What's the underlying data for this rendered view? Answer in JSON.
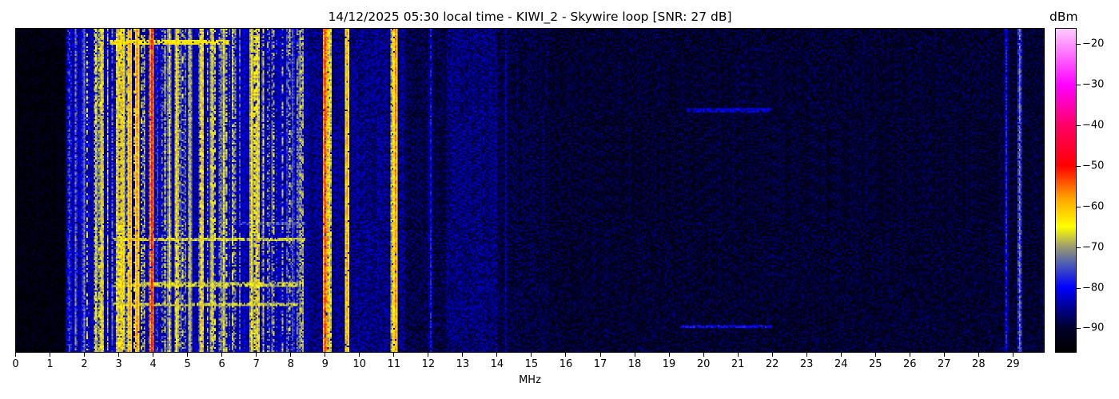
{
  "chart_data": {
    "type": "heatmap",
    "title": "14/12/2025 05:30 local time - KIWI_2 - Skywire loop [SNR: 27 dB]",
    "xlabel": "MHz",
    "ylabel": "",
    "xlim": [
      0,
      30
    ],
    "x_ticks": [
      "0",
      "1",
      "2",
      "3",
      "4",
      "5",
      "6",
      "7",
      "8",
      "9",
      "10",
      "11",
      "12",
      "13",
      "14",
      "15",
      "16",
      "17",
      "18",
      "19",
      "20",
      "21",
      "22",
      "23",
      "24",
      "25",
      "26",
      "27",
      "28",
      "29"
    ],
    "colorbar": {
      "label": "dBm",
      "range": [
        -96,
        -16
      ],
      "ticks": [
        "-20",
        "-30",
        "-40",
        "-50",
        "-60",
        "-70",
        "-80",
        "-90"
      ],
      "colormap": [
        {
          "value": -96,
          "color": "#000000"
        },
        {
          "value": -90,
          "color": "#00002a"
        },
        {
          "value": -80,
          "color": "#0000ff"
        },
        {
          "value": -74,
          "color": "#5060b0"
        },
        {
          "value": -70,
          "color": "#9a9a70"
        },
        {
          "value": -65,
          "color": "#ffff00"
        },
        {
          "value": -58,
          "color": "#ffa500"
        },
        {
          "value": -50,
          "color": "#ff0000"
        },
        {
          "value": -40,
          "color": "#ff0066"
        },
        {
          "value": -30,
          "color": "#ff00ff"
        },
        {
          "value": -16,
          "color": "#ffccff"
        }
      ]
    },
    "noise_floor_dbm": -90,
    "vertical_signals": [
      {
        "freq_mhz": 1.7,
        "level_dbm": -80
      },
      {
        "freq_mhz": 1.95,
        "level_dbm": -72
      },
      {
        "freq_mhz": 2.3,
        "level_dbm": -66
      },
      {
        "freq_mhz": 2.5,
        "level_dbm": -63
      },
      {
        "freq_mhz": 2.95,
        "level_dbm": -62
      },
      {
        "freq_mhz": 3.1,
        "level_dbm": -60
      },
      {
        "freq_mhz": 3.3,
        "level_dbm": -58
      },
      {
        "freq_mhz": 3.5,
        "level_dbm": -57
      },
      {
        "freq_mhz": 3.95,
        "level_dbm": -51
      },
      {
        "freq_mhz": 4.45,
        "level_dbm": -66
      },
      {
        "freq_mhz": 4.65,
        "level_dbm": -63
      },
      {
        "freq_mhz": 5.05,
        "level_dbm": -66
      },
      {
        "freq_mhz": 5.4,
        "level_dbm": -62
      },
      {
        "freq_mhz": 5.7,
        "level_dbm": -64
      },
      {
        "freq_mhz": 6.05,
        "level_dbm": -66
      },
      {
        "freq_mhz": 6.85,
        "level_dbm": -64
      },
      {
        "freq_mhz": 7.0,
        "level_dbm": -62
      },
      {
        "freq_mhz": 9.0,
        "level_dbm": -52
      },
      {
        "freq_mhz": 9.1,
        "level_dbm": -62
      },
      {
        "freq_mhz": 9.6,
        "level_dbm": -58
      },
      {
        "freq_mhz": 10.95,
        "level_dbm": -64
      },
      {
        "freq_mhz": 11.02,
        "level_dbm": -57
      },
      {
        "freq_mhz": 12.05,
        "level_dbm": -80
      },
      {
        "freq_mhz": 14.25,
        "level_dbm": -84
      },
      {
        "freq_mhz": 28.8,
        "level_dbm": -80
      },
      {
        "freq_mhz": 29.2,
        "level_dbm": -72
      }
    ],
    "horizontal_bursts": [
      {
        "time_fraction": 0.04,
        "freq_range_mhz": [
          2.7,
          6.2
        ],
        "level_dbm": -64
      },
      {
        "time_fraction": 0.65,
        "freq_range_mhz": [
          2.8,
          8.4
        ],
        "level_dbm": -68
      },
      {
        "time_fraction": 0.6,
        "freq_range_mhz": [
          6.5,
          8.4
        ],
        "level_dbm": -76
      },
      {
        "time_fraction": 0.79,
        "freq_range_mhz": [
          2.8,
          8.2
        ],
        "level_dbm": -68
      },
      {
        "time_fraction": 0.85,
        "freq_range_mhz": [
          2.8,
          8.2
        ],
        "level_dbm": -68
      },
      {
        "time_fraction": 0.25,
        "freq_range_mhz": [
          19.5,
          22.0
        ],
        "level_dbm": -82
      },
      {
        "time_fraction": 0.92,
        "freq_range_mhz": [
          19.3,
          22.0
        ],
        "level_dbm": -80
      }
    ]
  }
}
